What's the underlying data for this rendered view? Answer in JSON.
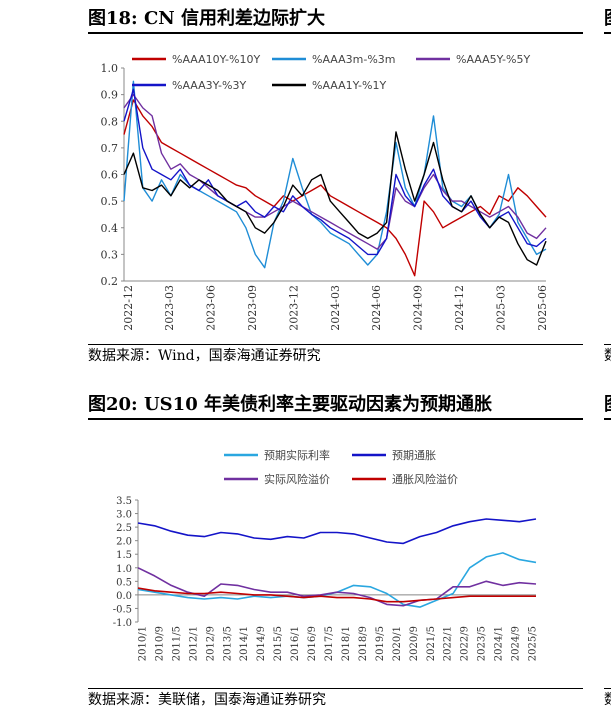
{
  "figure18": {
    "title_prefix": "图18:",
    "title_text": "CN 信用利差边际扩大",
    "source": "数据来源：Wind，国泰海通证券研究",
    "chart_data": {
      "type": "line",
      "title": "CN 信用利差边际扩大",
      "ylim": [
        0.2,
        1.0
      ],
      "yticks": [
        "1.0",
        "0.9",
        "0.8",
        "0.7",
        "0.6",
        "0.5",
        "0.4",
        "0.3",
        "0.2"
      ],
      "xticks": [
        "2022-12",
        "2023-03",
        "2023-06",
        "2023-09",
        "2023-12",
        "2024-03",
        "2024-06",
        "2024-09",
        "2024-12",
        "2025-03",
        "2025-06"
      ],
      "legend_position": "top",
      "series": [
        {
          "name": "%AAA10Y-%10Y",
          "color": "#c00000",
          "values": [
            0.75,
            0.88,
            0.82,
            0.78,
            0.72,
            0.7,
            0.68,
            0.66,
            0.64,
            0.62,
            0.6,
            0.58,
            0.56,
            0.55,
            0.52,
            0.5,
            0.48,
            0.52,
            0.5,
            0.52,
            0.54,
            0.56,
            0.52,
            0.5,
            0.48,
            0.46,
            0.44,
            0.42,
            0.4,
            0.36,
            0.3,
            0.22,
            0.5,
            0.46,
            0.4,
            0.42,
            0.44,
            0.46,
            0.48,
            0.45,
            0.52,
            0.5,
            0.55,
            0.52,
            0.48,
            0.44
          ]
        },
        {
          "name": "%AAA3m-%3m",
          "color": "#1f8dd6",
          "values": [
            0.5,
            0.95,
            0.55,
            0.5,
            0.58,
            0.52,
            0.6,
            0.56,
            0.54,
            0.52,
            0.5,
            0.48,
            0.46,
            0.4,
            0.3,
            0.25,
            0.42,
            0.5,
            0.66,
            0.55,
            0.45,
            0.42,
            0.38,
            0.36,
            0.34,
            0.3,
            0.26,
            0.3,
            0.46,
            0.72,
            0.55,
            0.48,
            0.6,
            0.82,
            0.55,
            0.5,
            0.48,
            0.52,
            0.45,
            0.4,
            0.45,
            0.6,
            0.42,
            0.36,
            0.3,
            0.32
          ]
        },
        {
          "name": "%AAA5Y-%5Y",
          "color": "#7030a0",
          "values": [
            0.85,
            0.9,
            0.85,
            0.82,
            0.68,
            0.62,
            0.64,
            0.6,
            0.58,
            0.55,
            0.52,
            0.5,
            0.48,
            0.46,
            0.44,
            0.44,
            0.46,
            0.48,
            0.5,
            0.48,
            0.46,
            0.44,
            0.42,
            0.4,
            0.38,
            0.36,
            0.34,
            0.32,
            0.36,
            0.55,
            0.5,
            0.48,
            0.55,
            0.6,
            0.54,
            0.5,
            0.5,
            0.48,
            0.46,
            0.44,
            0.46,
            0.48,
            0.44,
            0.38,
            0.36,
            0.4
          ]
        },
        {
          "name": "%AAA3Y-%3Y",
          "color": "#1414c8",
          "values": [
            0.8,
            0.92,
            0.7,
            0.62,
            0.6,
            0.58,
            0.62,
            0.56,
            0.54,
            0.58,
            0.52,
            0.5,
            0.48,
            0.5,
            0.46,
            0.44,
            0.48,
            0.46,
            0.52,
            0.48,
            0.45,
            0.43,
            0.4,
            0.38,
            0.36,
            0.33,
            0.3,
            0.3,
            0.36,
            0.6,
            0.52,
            0.48,
            0.56,
            0.62,
            0.52,
            0.48,
            0.46,
            0.5,
            0.44,
            0.4,
            0.44,
            0.46,
            0.4,
            0.34,
            0.33,
            0.36
          ]
        },
        {
          "name": "%AAA1Y-%1Y",
          "color": "#000000",
          "values": [
            0.6,
            0.68,
            0.55,
            0.54,
            0.56,
            0.52,
            0.58,
            0.55,
            0.58,
            0.56,
            0.54,
            0.5,
            0.48,
            0.46,
            0.4,
            0.38,
            0.42,
            0.48,
            0.56,
            0.52,
            0.58,
            0.6,
            0.5,
            0.46,
            0.42,
            0.38,
            0.36,
            0.38,
            0.42,
            0.76,
            0.62,
            0.5,
            0.6,
            0.72,
            0.58,
            0.48,
            0.46,
            0.52,
            0.45,
            0.4,
            0.44,
            0.42,
            0.34,
            0.28,
            0.26,
            0.35
          ]
        }
      ]
    }
  },
  "figure20": {
    "title_prefix": "图20:",
    "title_text": "US10 年美债利率主要驱动因素为预期通胀",
    "source": "数据来源：美联储，国泰海通证券研究",
    "chart_data": {
      "type": "line",
      "title": "US10 年美债利率主要驱动因素为预期通胀",
      "ylim": [
        -1.0,
        3.5
      ],
      "yticks": [
        "3.5",
        "3.0",
        "2.5",
        "2.0",
        "1.5",
        "1.0",
        "0.5",
        "0.0",
        "-0.5",
        "-1.0"
      ],
      "xticks": [
        "2010/1",
        "2010/9",
        "2011/5",
        "2012/1",
        "2012/9",
        "2013/5",
        "2014/1",
        "2014/9",
        "2015/5",
        "2016/1",
        "2016/9",
        "2017/5",
        "2018/1",
        "2018/9",
        "2019/5",
        "2020/1",
        "2020/9",
        "2021/5",
        "2022/1",
        "2022/9",
        "2023/5",
        "2024/1",
        "2024/9",
        "2025/5"
      ],
      "legend_position": "top",
      "series": [
        {
          "name": "预期实际利率",
          "color": "#2aa7e0",
          "values": [
            0.2,
            0.1,
            0.0,
            -0.1,
            -0.15,
            -0.1,
            -0.15,
            -0.05,
            -0.1,
            -0.05,
            -0.1,
            -0.05,
            0.1,
            0.35,
            0.3,
            0.05,
            -0.35,
            -0.45,
            -0.2,
            0.05,
            1.0,
            1.4,
            1.55,
            1.3,
            1.2
          ]
        },
        {
          "name": "预期通胀",
          "color": "#1414c8",
          "values": [
            2.65,
            2.55,
            2.35,
            2.2,
            2.15,
            2.3,
            2.25,
            2.1,
            2.05,
            2.15,
            2.1,
            2.3,
            2.3,
            2.25,
            2.1,
            1.95,
            1.9,
            2.15,
            2.3,
            2.55,
            2.7,
            2.8,
            2.75,
            2.7,
            2.8
          ]
        },
        {
          "name": "实际风险溢价",
          "color": "#7030a0",
          "values": [
            1.0,
            0.7,
            0.35,
            0.1,
            -0.05,
            0.4,
            0.35,
            0.2,
            0.1,
            0.1,
            -0.05,
            0.0,
            0.1,
            0.05,
            -0.1,
            -0.35,
            -0.4,
            -0.2,
            -0.15,
            0.3,
            0.3,
            0.5,
            0.35,
            0.45,
            0.4
          ]
        },
        {
          "name": "通胀风险溢价",
          "color": "#c00000",
          "values": [
            0.25,
            0.15,
            0.1,
            0.05,
            0.05,
            0.1,
            0.05,
            0.0,
            0.0,
            -0.05,
            -0.1,
            -0.05,
            -0.1,
            -0.1,
            -0.15,
            -0.25,
            -0.25,
            -0.2,
            -0.15,
            -0.1,
            -0.05,
            -0.05,
            -0.05,
            -0.05,
            -0.05
          ]
        }
      ]
    }
  }
}
